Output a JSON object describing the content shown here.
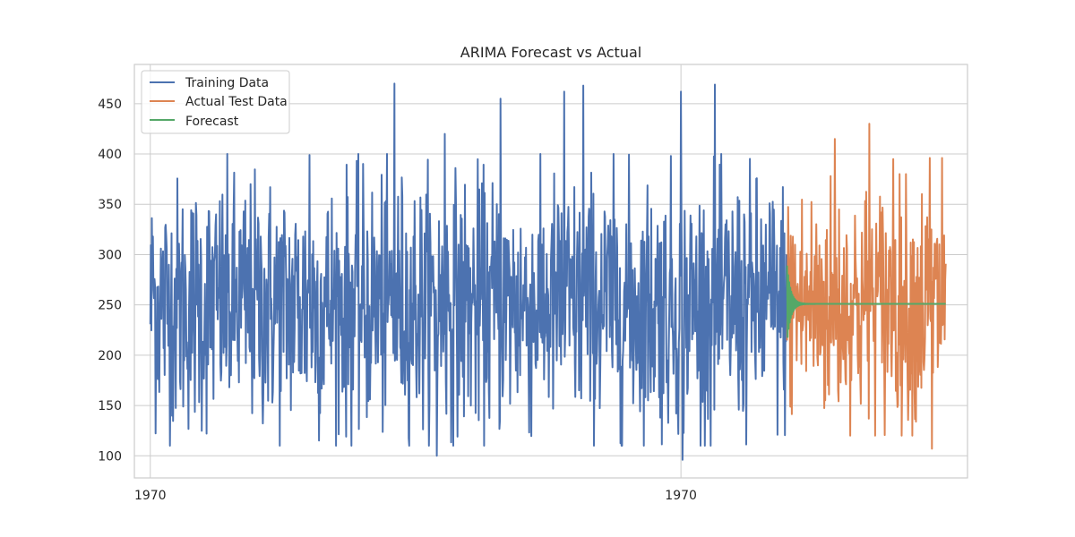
{
  "chart_data": {
    "type": "line",
    "title": "ARIMA Forecast vs Actual",
    "xlabel": "",
    "ylabel": "",
    "x_tick_labels": [
      "1970",
      "1970"
    ],
    "y_ticks": [
      100,
      150,
      200,
      250,
      300,
      350,
      400,
      450
    ],
    "ylim": [
      78,
      489
    ],
    "xlim": [
      -30,
      1540
    ],
    "grid": true,
    "legend_position": "top-left",
    "colors": {
      "training": "#4c72b0",
      "actual_test": "#dd8452",
      "forecast": "#55a868",
      "grid": "#cccccc",
      "spine": "#cccccc"
    },
    "series": [
      {
        "name": "Training Data",
        "color": "#4c72b0",
        "x_start": 0,
        "x_end": 1199,
        "summary": {
          "min": 95,
          "max": 469,
          "mean": 250,
          "approx_points": 1200
        }
      },
      {
        "name": "Actual Test Data",
        "color": "#dd8452",
        "x_start": 1200,
        "x_end": 1499,
        "summary": {
          "min": 106,
          "max": 430,
          "mean": 250,
          "approx_points": 300
        }
      },
      {
        "name": "Forecast",
        "color": "#55a868",
        "x_start": 1200,
        "x_end": 1499,
        "summary": {
          "start_range": [
            215,
            290
          ],
          "converges_to": 251
        }
      }
    ]
  }
}
